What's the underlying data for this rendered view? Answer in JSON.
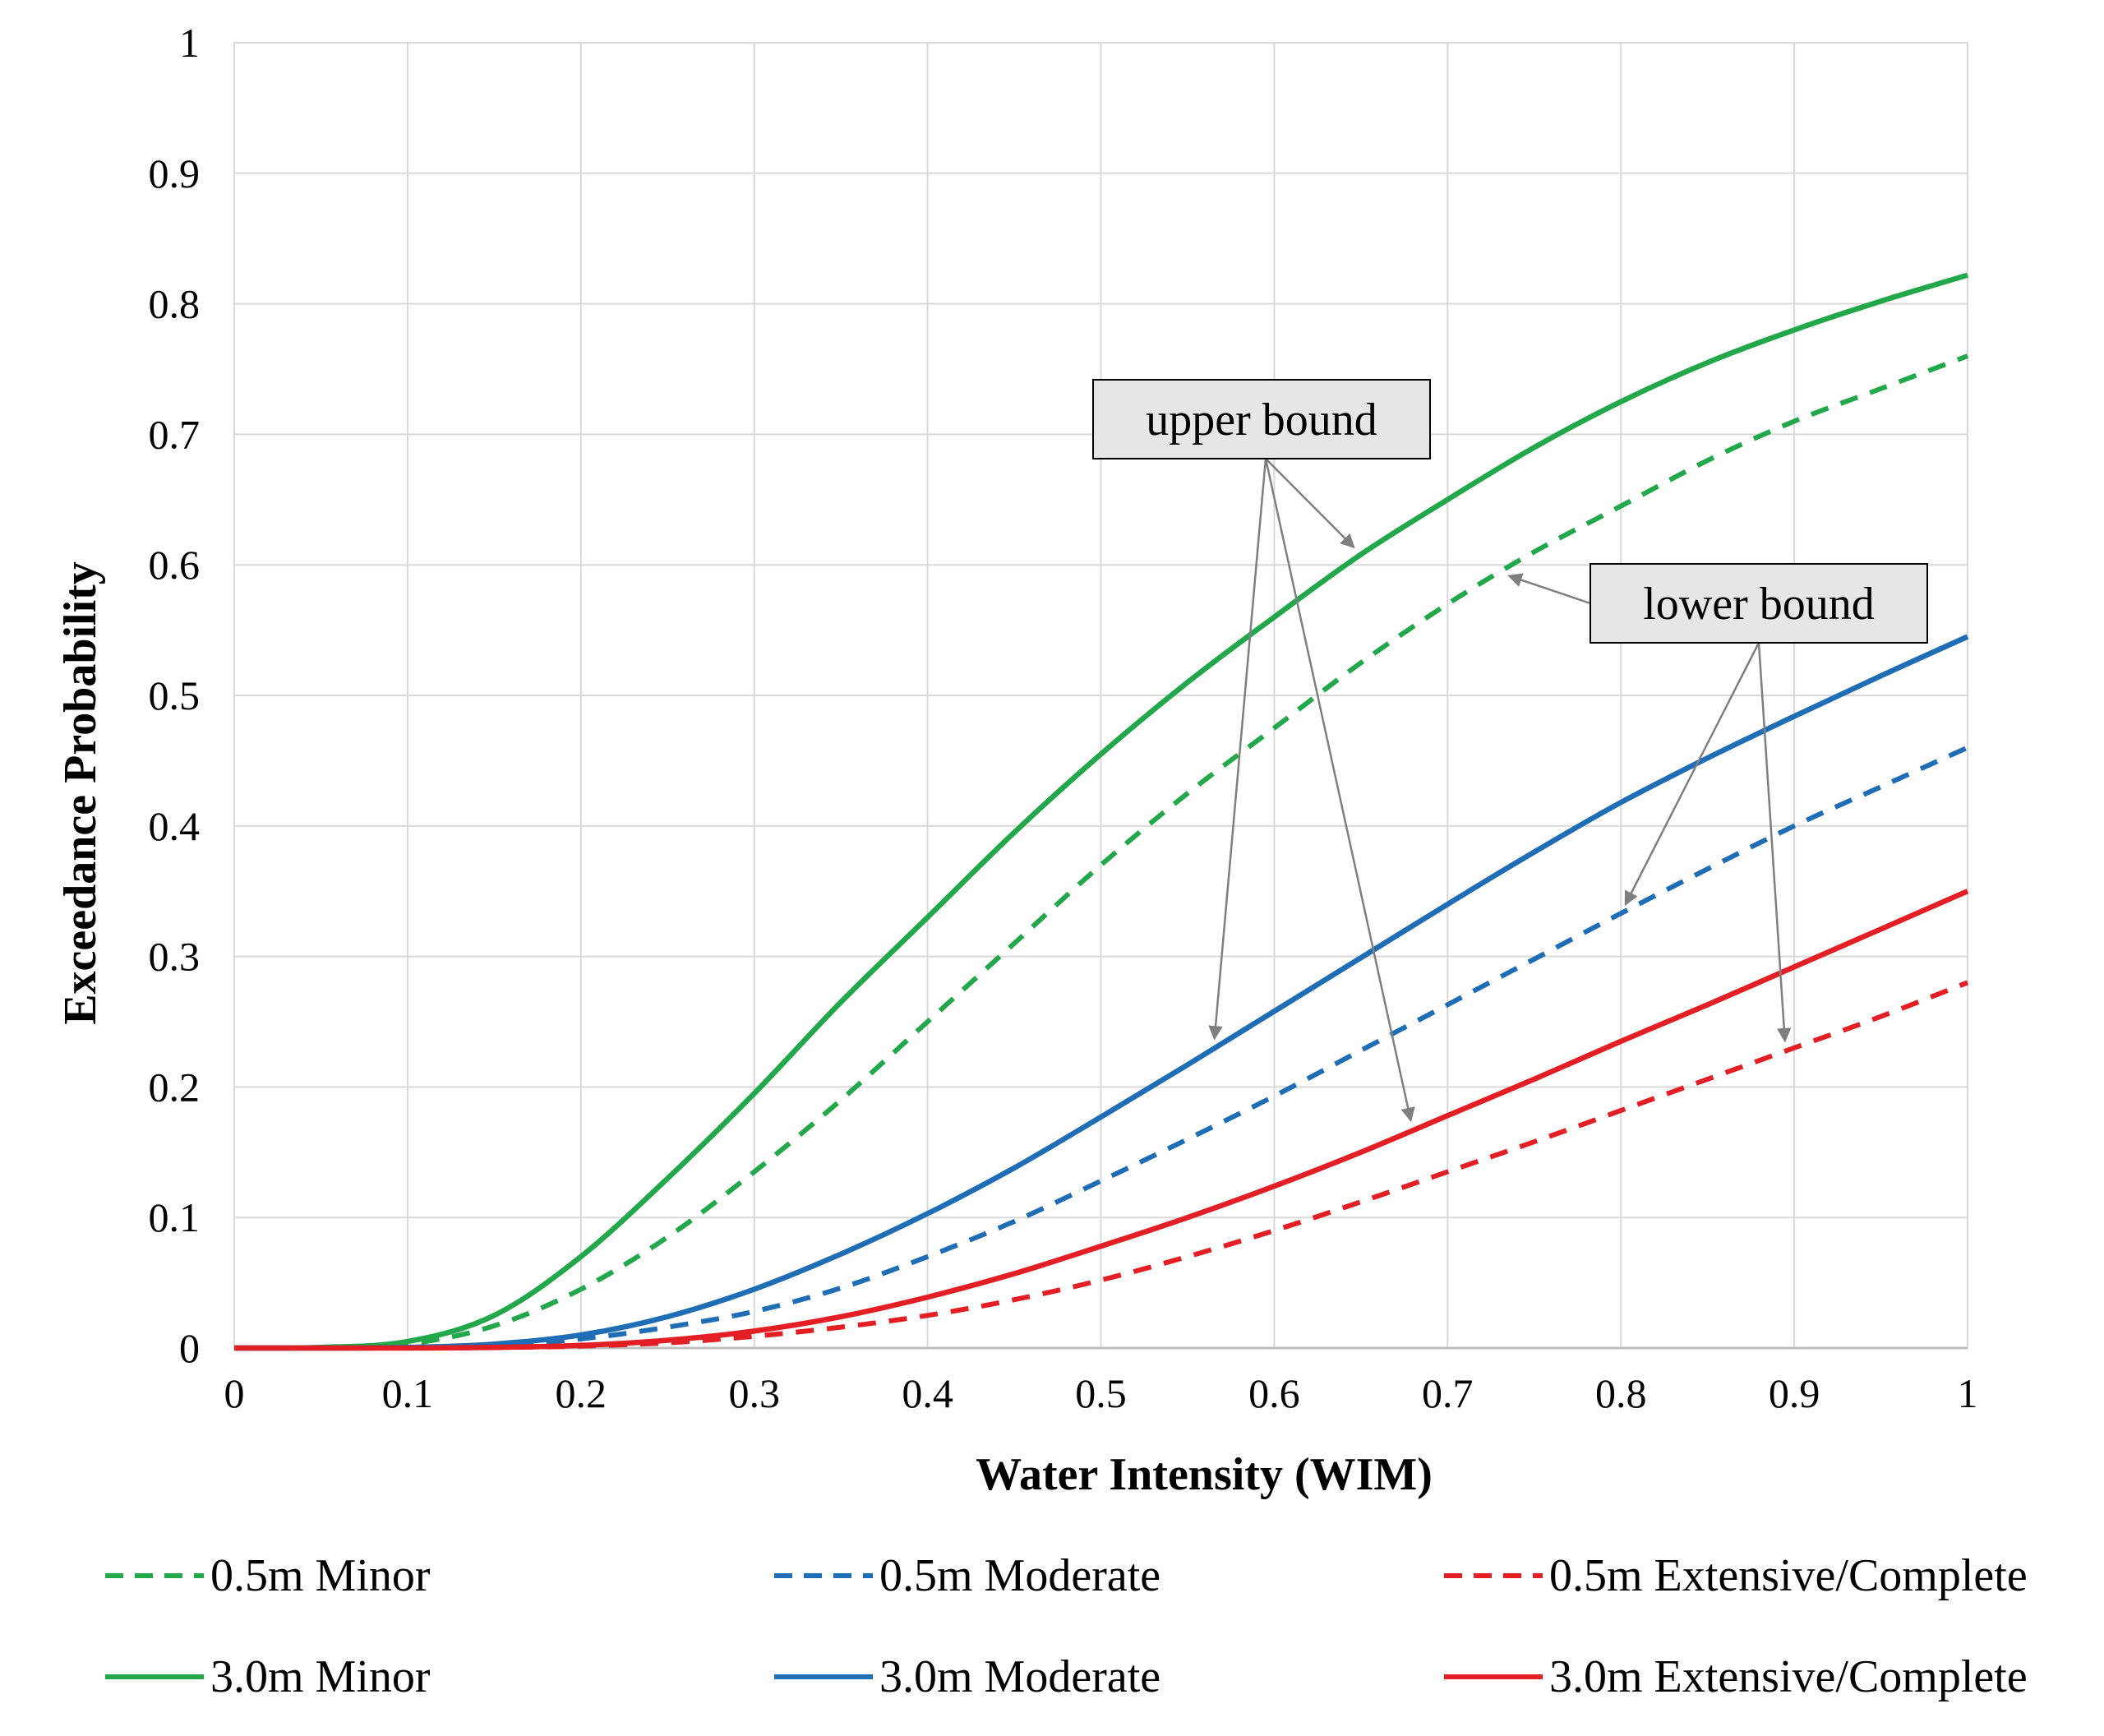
{
  "chart_data": {
    "type": "line",
    "title": "",
    "xlabel": "Water Intensity (WIM)",
    "ylabel": "Exceedance  Probability",
    "xlim": [
      0,
      1
    ],
    "ylim": [
      0,
      1
    ],
    "x_ticks": [
      "0",
      "0.1",
      "0.2",
      "0.3",
      "0.4",
      "0.5",
      "0.6",
      "0.7",
      "0.8",
      "0.9",
      "1"
    ],
    "y_ticks": [
      "0",
      "0.1",
      "0.2",
      "0.3",
      "0.4",
      "0.5",
      "0.6",
      "0.7",
      "0.8",
      "0.9",
      "1"
    ],
    "grid": true,
    "legend_position": "bottom",
    "x": [
      0,
      0.05,
      0.1,
      0.15,
      0.2,
      0.25,
      0.3,
      0.35,
      0.4,
      0.45,
      0.5,
      0.55,
      0.6,
      0.65,
      0.7,
      0.75,
      0.8,
      0.85,
      0.9,
      0.95,
      1.0
    ],
    "series": [
      {
        "name": "0.5m Minor",
        "color": "#22a84a",
        "style": "dashed",
        "values": [
          0,
          0.0003,
          0.003,
          0.017,
          0.045,
          0.085,
          0.135,
          0.19,
          0.25,
          0.31,
          0.37,
          0.425,
          0.475,
          0.525,
          0.57,
          0.61,
          0.645,
          0.68,
          0.71,
          0.735,
          0.76
        ]
      },
      {
        "name": "0.5m Moderate",
        "color": "#1f6db5",
        "style": "dashed",
        "values": [
          0,
          0,
          0.0002,
          0.002,
          0.007,
          0.016,
          0.028,
          0.046,
          0.07,
          0.097,
          0.128,
          0.16,
          0.193,
          0.228,
          0.263,
          0.298,
          0.333,
          0.367,
          0.4,
          0.43,
          0.46
        ]
      },
      {
        "name": "0.5m Extensive/Complete",
        "color": "#e31e24",
        "style": "dashed",
        "values": [
          0,
          0,
          0,
          0.0003,
          0.0015,
          0.004,
          0.009,
          0.016,
          0.025,
          0.037,
          0.052,
          0.07,
          0.09,
          0.112,
          0.135,
          0.158,
          0.182,
          0.206,
          0.23,
          0.254,
          0.28
        ]
      },
      {
        "name": "3.0m Minor",
        "color": "#22a84a",
        "style": "solid",
        "values": [
          0,
          0.0005,
          0.005,
          0.025,
          0.07,
          0.13,
          0.195,
          0.265,
          0.33,
          0.395,
          0.455,
          0.51,
          0.56,
          0.608,
          0.65,
          0.69,
          0.725,
          0.755,
          0.78,
          0.802,
          0.822
        ]
      },
      {
        "name": "3.0m Moderate",
        "color": "#1f6db5",
        "style": "solid",
        "values": [
          0,
          0,
          0.0005,
          0.003,
          0.01,
          0.024,
          0.045,
          0.072,
          0.103,
          0.138,
          0.177,
          0.217,
          0.258,
          0.299,
          0.34,
          0.38,
          0.418,
          0.452,
          0.484,
          0.515,
          0.545
        ]
      },
      {
        "name": "3.0m Extensive/Complete",
        "color": "#e31e24",
        "style": "solid",
        "values": [
          0,
          0,
          0,
          0.0005,
          0.002,
          0.006,
          0.013,
          0.024,
          0.039,
          0.057,
          0.078,
          0.1,
          0.124,
          0.15,
          0.178,
          0.206,
          0.235,
          0.263,
          0.292,
          0.321,
          0.35
        ]
      }
    ],
    "annotations": [
      {
        "text": "upper bound",
        "targets": [
          "3.0m Minor",
          "3.0m Moderate",
          "3.0m Extensive/Complete"
        ]
      },
      {
        "text": "lower bound",
        "targets": [
          "0.5m Minor",
          "0.5m Moderate",
          "0.5m Extensive/Complete"
        ]
      }
    ],
    "legend": {
      "rows": [
        [
          "0.5m Minor",
          "0.5m Moderate",
          "0.5m Extensive/Complete"
        ],
        [
          "3.0m Minor",
          "3.0m Moderate",
          "3.0m Extensive/Complete"
        ]
      ]
    }
  }
}
